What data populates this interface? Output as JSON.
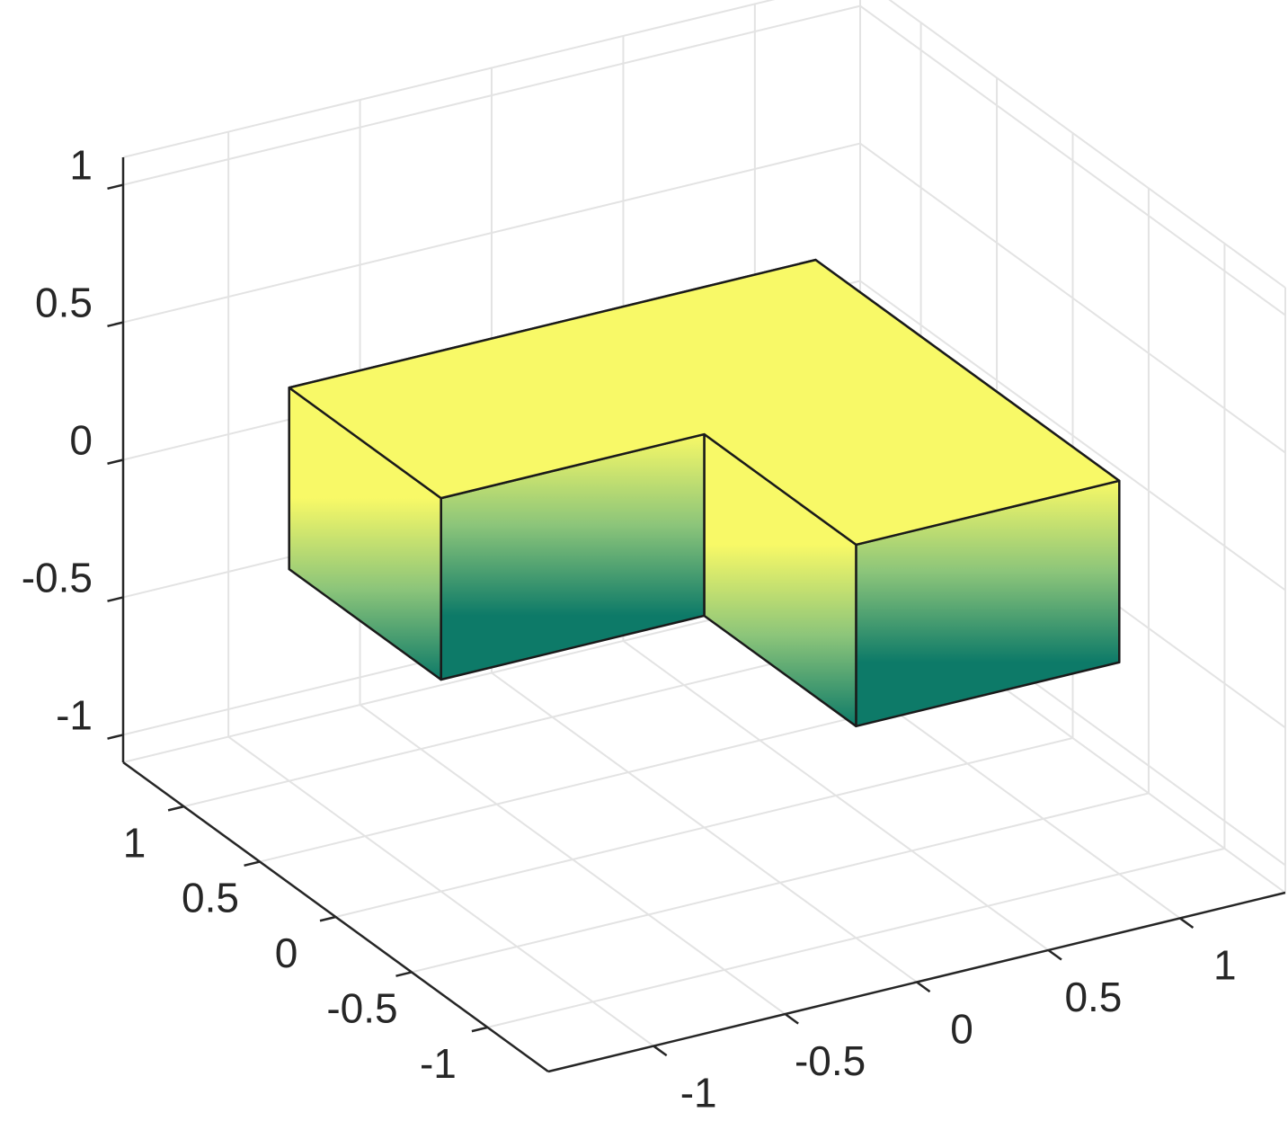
{
  "chart_data": {
    "type": "surface3d",
    "shape": {
      "x": [
        -1,
        1,
        1,
        0,
        0,
        -1
      ],
      "y": [
        1,
        1,
        -1,
        -1,
        0,
        0
      ],
      "z_bottom": -0.33,
      "z_top": 0.33
    },
    "colors": [
      "#0d7a68",
      "#8cc57a",
      "#f8f967"
    ],
    "edge_color": "#1a1a1a",
    "xlim": [
      -1.4,
      1.4
    ],
    "ylim": [
      -1.4,
      1.4
    ],
    "zlim": [
      -1.1,
      1.1
    ],
    "xticks": [
      -1,
      -0.5,
      0,
      0.5,
      1
    ],
    "yticks": [
      -1,
      -0.5,
      0,
      0.5,
      1
    ],
    "zticks": [
      -1,
      -0.5,
      0,
      0.5,
      1
    ],
    "grid": true
  }
}
